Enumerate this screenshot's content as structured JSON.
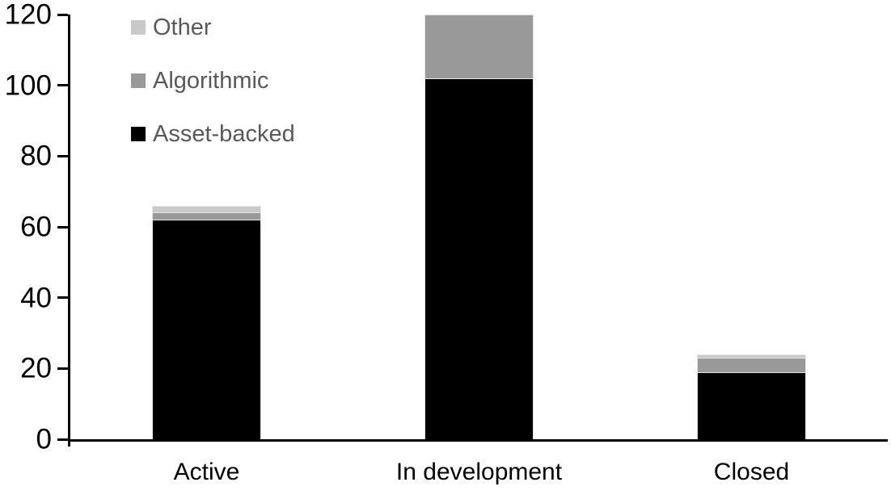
{
  "chart_data": {
    "type": "bar",
    "stacked": true,
    "title": "",
    "xlabel": "",
    "ylabel": "",
    "categories": [
      "Active",
      "In development",
      "Closed"
    ],
    "series": [
      {
        "name": "Asset-backed",
        "color": "#000000",
        "values": [
          62,
          102,
          19
        ]
      },
      {
        "name": "Algorithmic",
        "color": "#999999",
        "values": [
          2,
          18,
          4
        ]
      },
      {
        "name": "Other",
        "color": "#c9c9c9",
        "values": [
          2,
          0,
          1
        ]
      }
    ],
    "totals": [
      66,
      120,
      24
    ],
    "ylim": [
      0,
      120
    ],
    "yticks": [
      0,
      20,
      40,
      60,
      80,
      100,
      120
    ],
    "grid": false,
    "legend_position": "top-left",
    "legend_order": [
      "Other",
      "Algorithmic",
      "Asset-backed"
    ],
    "colors": {
      "axis": "#000000",
      "tick_label": "#000000",
      "category_label": "#000000",
      "legend_text": "#595959",
      "background": "#ffffff"
    }
  }
}
